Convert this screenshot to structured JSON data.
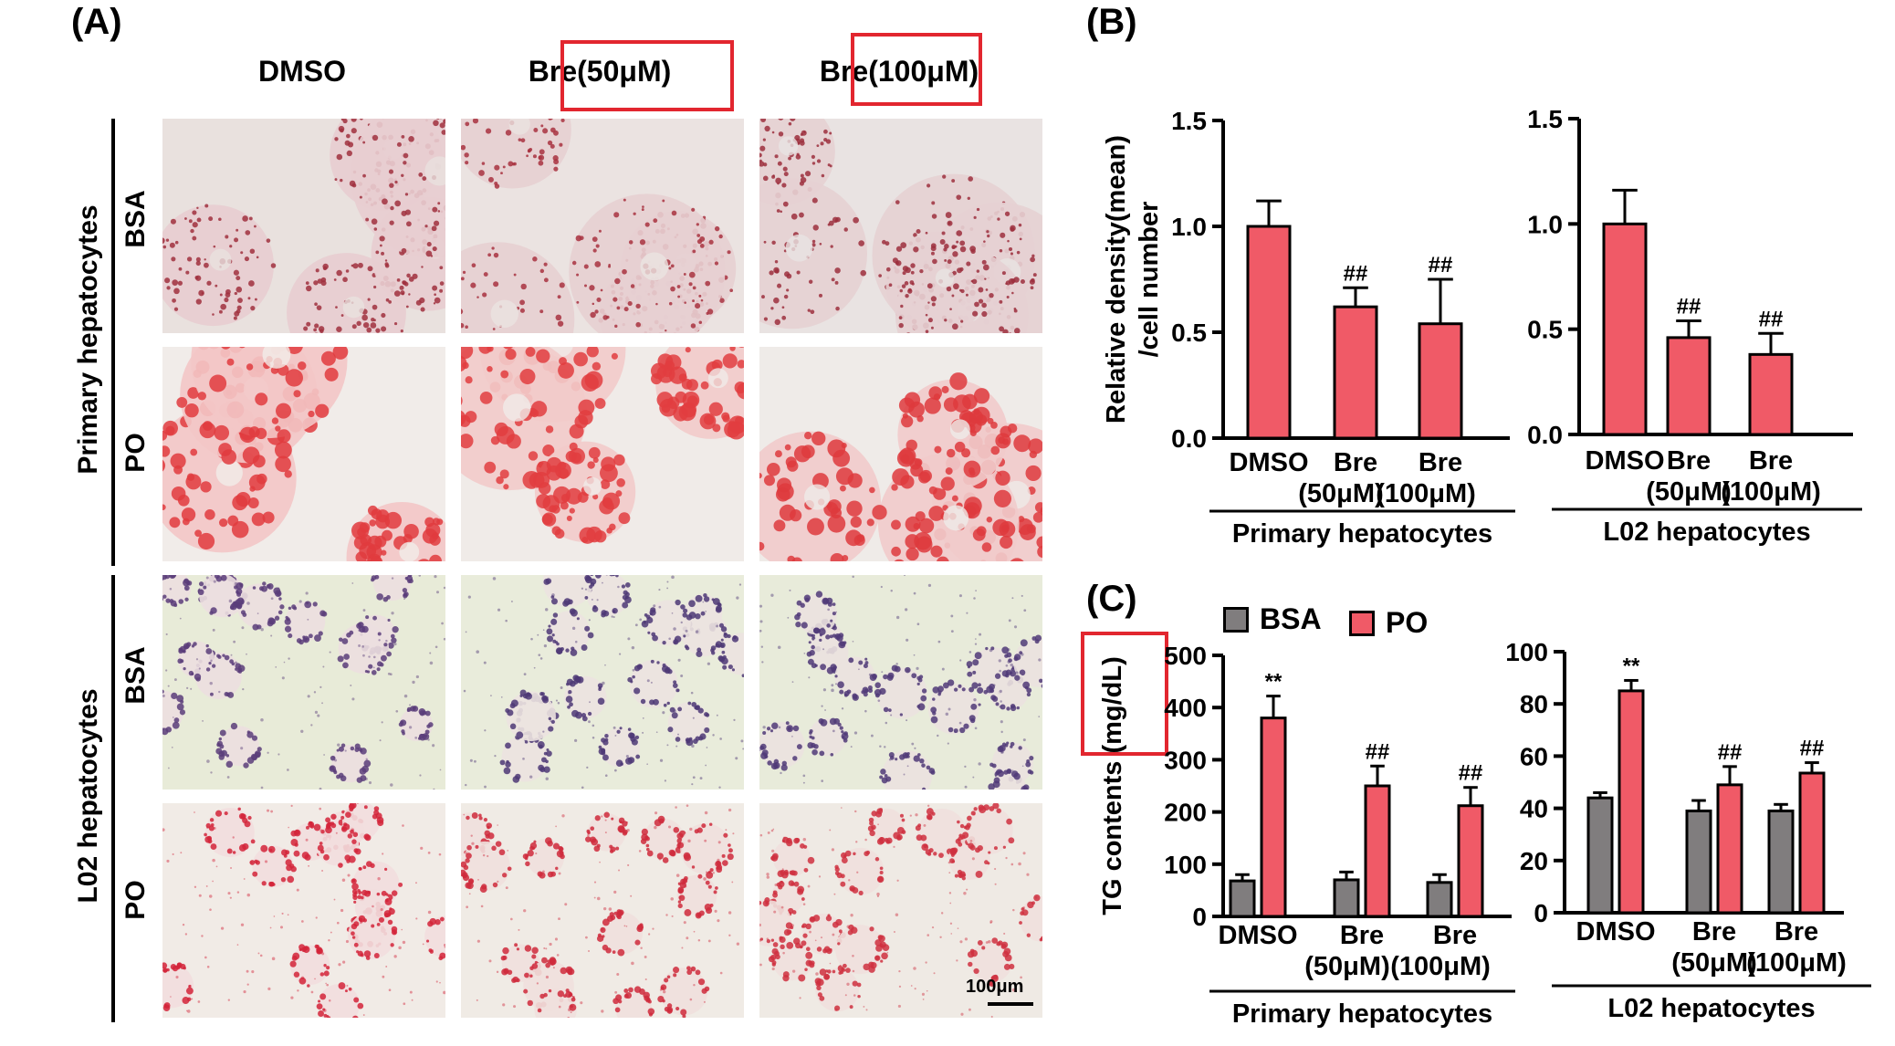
{
  "panel_a": {
    "label": "(A)",
    "columns": [
      "DMSO",
      "Bre(50μM)",
      "Bre(100μM)"
    ],
    "groups": [
      {
        "name": "Primary hepatocytes",
        "rows": [
          "BSA",
          "PO"
        ]
      },
      {
        "name": "L02 hepatocytes",
        "rows": [
          "BSA",
          "PO"
        ]
      }
    ],
    "scale_bar": "100μm"
  },
  "panel_b_label": "(B)",
  "panel_c_label": "(C)",
  "legend": [
    {
      "name": "BSA",
      "color": "#807d7e"
    },
    {
      "name": "PO",
      "color": "#f05a67"
    }
  ],
  "colors": {
    "bar_red": "#f05a67",
    "bar_gray": "#807d7e",
    "highlight": "#e2262f"
  },
  "chart_data": [
    {
      "type": "bar",
      "panel": "B",
      "ylabel": [
        "Relative density(mean)",
        "/cell number"
      ],
      "xlabel": "Primary hepatocytes",
      "categories": [
        [
          "DMSO"
        ],
        [
          "Bre",
          "(50μM)"
        ],
        [
          "Bre",
          "(100μM)"
        ]
      ],
      "ylim": [
        0,
        1.5
      ],
      "yticks": [
        "0.0",
        "0.5",
        "1.0",
        "1.5"
      ],
      "series": [
        {
          "values": [
            1.0,
            0.62,
            0.54
          ],
          "errors": [
            0.12,
            0.09,
            0.21
          ],
          "annotations": [
            "",
            "##",
            "##"
          ]
        }
      ]
    },
    {
      "type": "bar",
      "panel": "B",
      "ylabel": [],
      "xlabel": "L02 hepatocytes",
      "categories": [
        [
          "DMSO"
        ],
        [
          "Bre",
          "(50μM)"
        ],
        [
          "Bre",
          "(100μM)"
        ]
      ],
      "ylim": [
        0,
        1.5
      ],
      "yticks": [
        "0.0",
        "0.5",
        "1.0",
        "1.5"
      ],
      "series": [
        {
          "values": [
            1.0,
            0.46,
            0.38
          ],
          "errors": [
            0.16,
            0.08,
            0.1
          ],
          "annotations": [
            "",
            "##",
            "##"
          ]
        }
      ]
    },
    {
      "type": "bar",
      "panel": "C",
      "ylabel": [
        "TG contents (mg/dL)"
      ],
      "xlabel": "Primary hepatocytes",
      "categories": [
        [
          "DMSO"
        ],
        [
          "Bre",
          "(50μM)"
        ],
        [
          "Bre",
          "(100μM)"
        ]
      ],
      "ylim": [
        0,
        500
      ],
      "yticks": [
        "0",
        "100",
        "200",
        "300",
        "400",
        "500"
      ],
      "series": [
        {
          "name": "BSA",
          "values": [
            68,
            70,
            65
          ],
          "errors": [
            12,
            15,
            15
          ],
          "annotations": [
            "",
            "",
            ""
          ]
        },
        {
          "name": "PO",
          "values": [
            380,
            250,
            212
          ],
          "errors": [
            42,
            38,
            35
          ],
          "annotations": [
            "**",
            "##",
            "##"
          ]
        }
      ]
    },
    {
      "type": "bar",
      "panel": "C",
      "ylabel": [],
      "xlabel": "L02 hepatocytes",
      "categories": [
        [
          "DMSO"
        ],
        [
          "Bre",
          "(50μM)"
        ],
        [
          "Bre",
          "(100μM)"
        ]
      ],
      "ylim": [
        0,
        100
      ],
      "yticks": [
        "0",
        "20",
        "40",
        "60",
        "80",
        "100"
      ],
      "series": [
        {
          "name": "BSA",
          "values": [
            44,
            39,
            39
          ],
          "errors": [
            2,
            4,
            2.5
          ],
          "annotations": [
            "",
            "",
            ""
          ]
        },
        {
          "name": "PO",
          "values": [
            85,
            49,
            53.5
          ],
          "errors": [
            4,
            7,
            4
          ],
          "annotations": [
            "**",
            "##",
            "##"
          ]
        }
      ]
    }
  ]
}
